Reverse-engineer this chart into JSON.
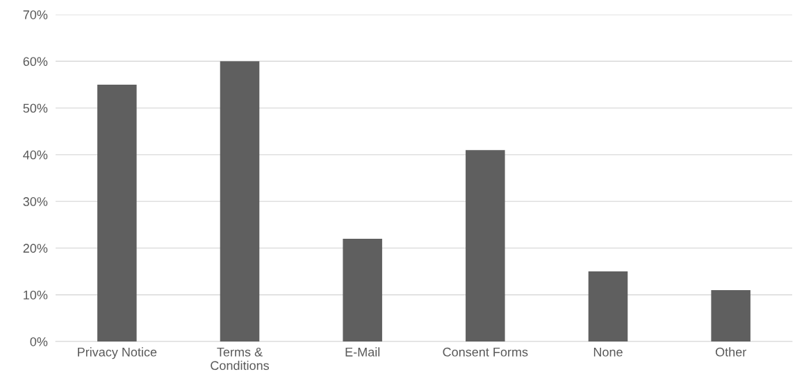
{
  "chart_data": {
    "type": "bar",
    "categories": [
      "Privacy Notice",
      "Terms &\nConditions",
      "E-Mail",
      "Consent Forms",
      "None",
      "Other"
    ],
    "values": [
      55,
      60,
      22,
      41,
      15,
      11
    ],
    "color": "#5f5f5f",
    "ylim": [
      0,
      70
    ],
    "yticks": [
      {
        "value": 0,
        "label": "0%"
      },
      {
        "value": 10,
        "label": "10%"
      },
      {
        "value": 20,
        "label": "20%"
      },
      {
        "value": 30,
        "label": "30%"
      },
      {
        "value": 40,
        "label": "40%"
      },
      {
        "value": 50,
        "label": "50%"
      },
      {
        "value": 60,
        "label": "60%"
      },
      {
        "value": 70,
        "label": "70%"
      }
    ],
    "grid": "y"
  }
}
